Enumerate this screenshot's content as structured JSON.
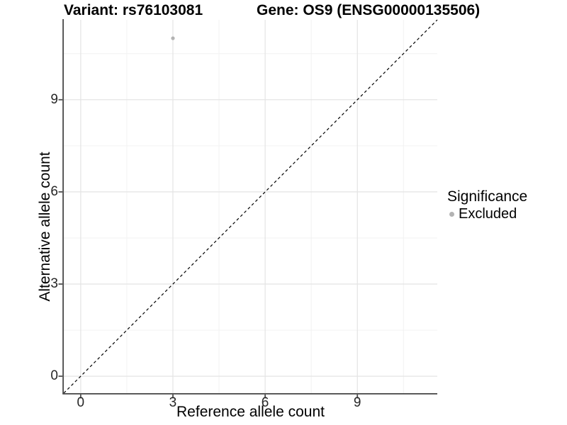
{
  "chart_data": {
    "type": "scatter",
    "title_left": "Variant: rs76103081",
    "title_right": "Gene: OS9 (ENSG00000135506)",
    "xlabel": "Reference allele count",
    "ylabel": "Alternative allele count",
    "xlim": [
      -0.55,
      11.6
    ],
    "ylim": [
      -0.55,
      11.6
    ],
    "major_ticks": [
      0,
      3,
      6,
      9
    ],
    "minor_ticks": [
      1.5,
      4.5,
      7.5,
      10.5
    ],
    "grid": true,
    "reference_line": {
      "type": "identity",
      "style": "dashed",
      "color": "#000000",
      "dash": "4,3.5",
      "width": 1.2
    },
    "series": [
      {
        "name": "Excluded",
        "color": "#b3b3b3",
        "point_radius": 2.6,
        "points": [
          {
            "x": 3,
            "y": 11
          }
        ]
      }
    ],
    "legend": {
      "position": "right",
      "title": "Significance",
      "entries": [
        {
          "label": "Excluded",
          "color": "#b3b3b3"
        }
      ]
    },
    "colors": {
      "axis_line": "#4f4f4f",
      "tick_mark": "#4f4f4f",
      "grid_major": "#e4e4e4",
      "grid_minor": "#f2f2f2",
      "tick_text": "#262626",
      "title_text": "#000000",
      "background": "#ffffff"
    }
  }
}
